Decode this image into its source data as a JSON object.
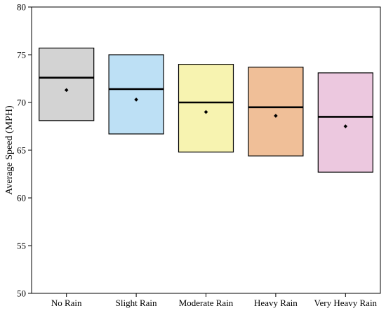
{
  "chart_data": {
    "type": "box",
    "title": "",
    "xlabel": "",
    "ylabel": "Average Speed (MPH)",
    "ylim": [
      50,
      80
    ],
    "yticks": [
      50,
      55,
      60,
      65,
      70,
      75,
      80
    ],
    "grid": false,
    "legend": "none",
    "categories": [
      "No Rain",
      "Slight Rain",
      "Moderate Rain",
      "Heavy Rain",
      "Very Heavy Rain"
    ],
    "boxes": [
      {
        "category": "No Rain",
        "q1": 68.1,
        "median": 72.6,
        "q3": 75.7,
        "mean": 71.3,
        "color": "#d3d3d3"
      },
      {
        "category": "Slight Rain",
        "q1": 66.7,
        "median": 71.4,
        "q3": 75.0,
        "mean": 70.3,
        "color": "#bde0f5"
      },
      {
        "category": "Moderate Rain",
        "q1": 64.8,
        "median": 70.0,
        "q3": 74.0,
        "mean": 69.0,
        "color": "#f7f3b0"
      },
      {
        "category": "Heavy Rain",
        "q1": 64.4,
        "median": 69.5,
        "q3": 73.7,
        "mean": 68.6,
        "color": "#f0bf98"
      },
      {
        "category": "Very Heavy Rain",
        "q1": 62.7,
        "median": 68.5,
        "q3": 73.1,
        "mean": 67.5,
        "color": "#ecc8df"
      }
    ]
  }
}
